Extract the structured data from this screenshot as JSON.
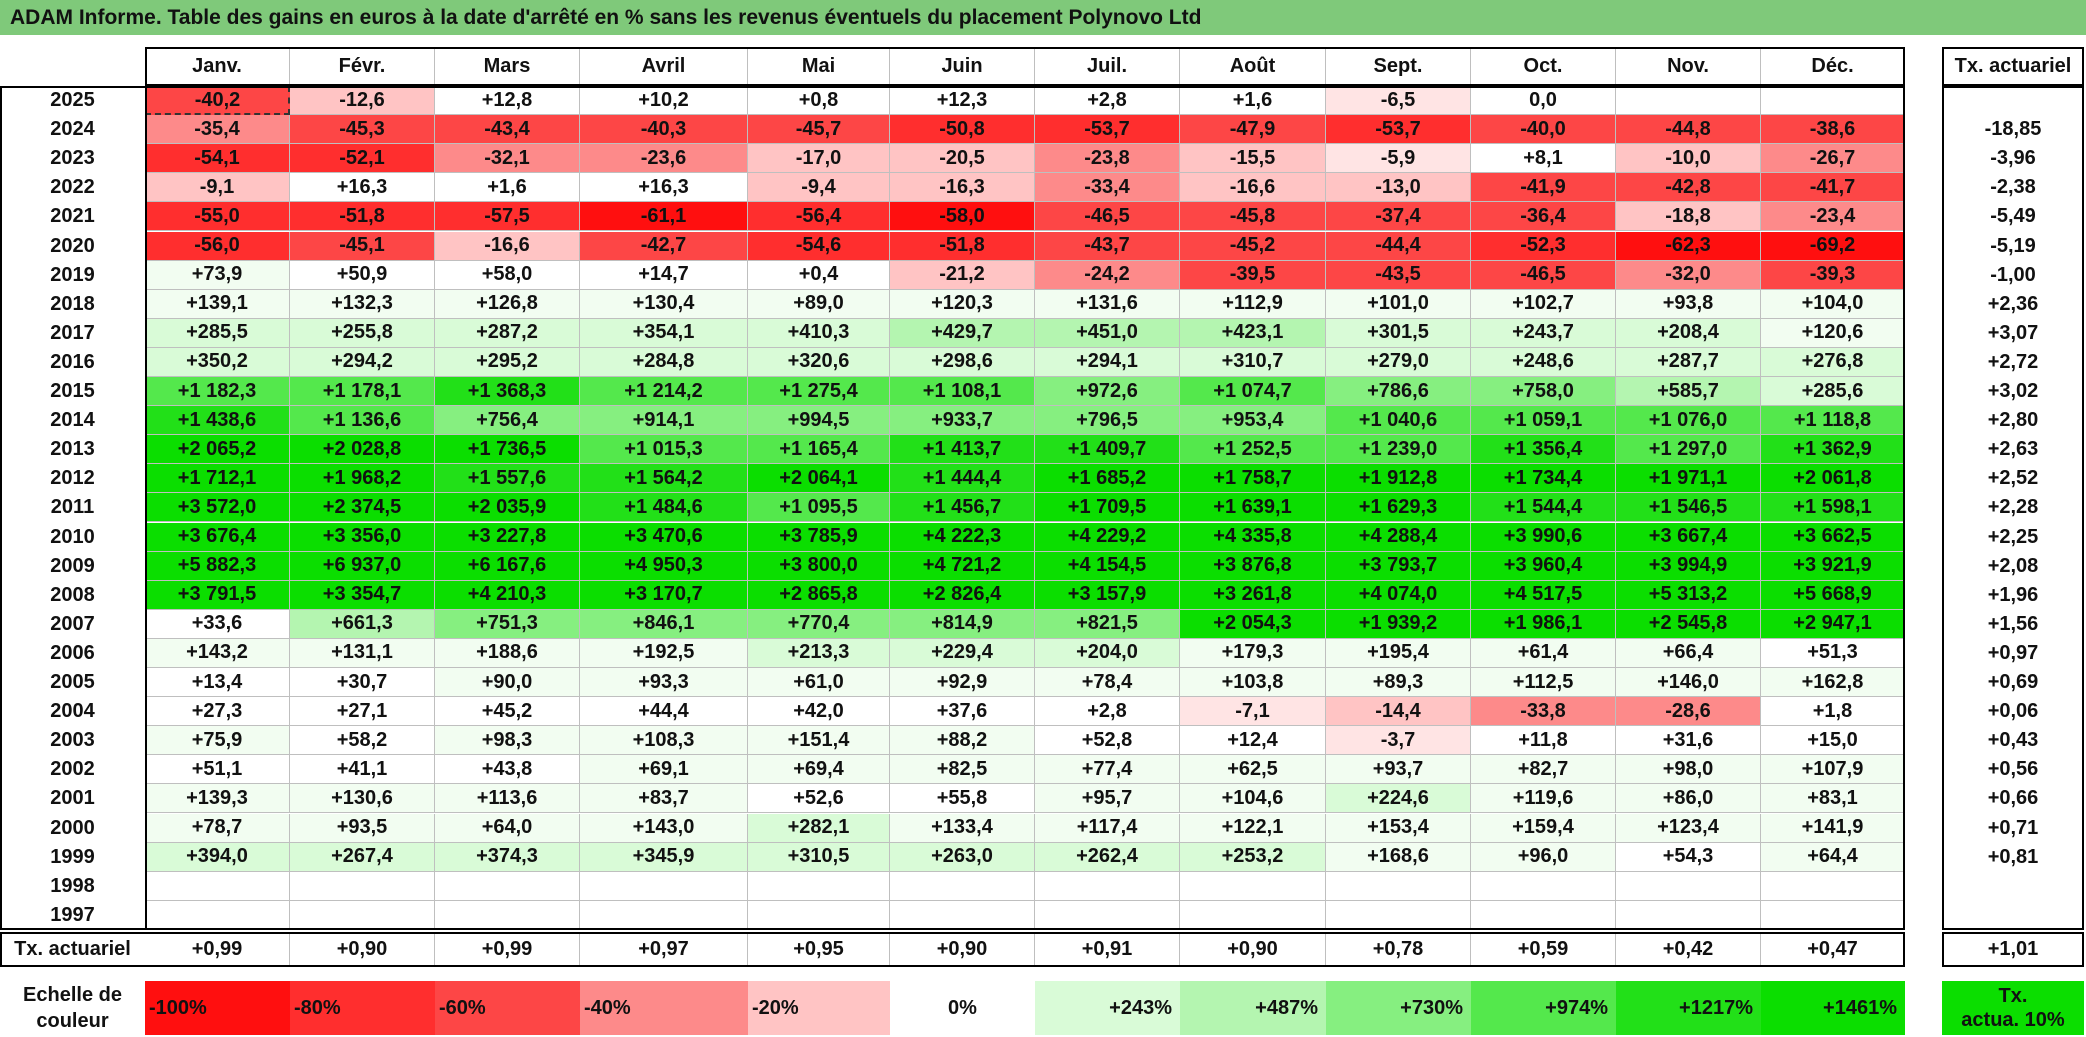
{
  "title": "ADAM Informe. Table des gains en euros à la date d'arrêté en % sans les revenus éventuels du placement Polynovo Ltd",
  "months": [
    "Janv.",
    "Févr.",
    "Mars",
    "Avril",
    "Mai",
    "Juin",
    "Juil.",
    "Août",
    "Sept.",
    "Oct.",
    "Nov.",
    "Déc."
  ],
  "rate_header": "Tx. actuariel",
  "rows": [
    {
      "year": "2025",
      "values": [
        "-40,2",
        "-12,6",
        "+12,8",
        "+10,2",
        "+0,8",
        "+12,3",
        "+2,8",
        "+1,6",
        "-6,5",
        "0,0",
        "",
        ""
      ],
      "rate": ""
    },
    {
      "year": "2024",
      "values": [
        "-35,4",
        "-45,3",
        "-43,4",
        "-40,3",
        "-45,7",
        "-50,8",
        "-53,7",
        "-47,9",
        "-53,7",
        "-40,0",
        "-44,8",
        "-38,6"
      ],
      "rate": "-18,85"
    },
    {
      "year": "2023",
      "values": [
        "-54,1",
        "-52,1",
        "-32,1",
        "-23,6",
        "-17,0",
        "-20,5",
        "-23,8",
        "-15,5",
        "-5,9",
        "+8,1",
        "-10,0",
        "-26,7"
      ],
      "rate": "-3,96"
    },
    {
      "year": "2022",
      "values": [
        "-9,1",
        "+16,3",
        "+1,6",
        "+16,3",
        "-9,4",
        "-16,3",
        "-33,4",
        "-16,6",
        "-13,0",
        "-41,9",
        "-42,8",
        "-41,7"
      ],
      "rate": "-2,38"
    },
    {
      "year": "2021",
      "values": [
        "-55,0",
        "-51,8",
        "-57,5",
        "-61,1",
        "-56,4",
        "-58,0",
        "-46,5",
        "-45,8",
        "-37,4",
        "-36,4",
        "-18,8",
        "-23,4"
      ],
      "rate": "-5,49"
    },
    {
      "year": "2020",
      "values": [
        "-56,0",
        "-45,1",
        "-16,6",
        "-42,7",
        "-54,6",
        "-51,8",
        "-43,7",
        "-45,2",
        "-44,4",
        "-52,3",
        "-62,3",
        "-69,2"
      ],
      "rate": "-5,19"
    },
    {
      "year": "2019",
      "values": [
        "+73,9",
        "+50,9",
        "+58,0",
        "+14,7",
        "+0,4",
        "-21,2",
        "-24,2",
        "-39,5",
        "-43,5",
        "-46,5",
        "-32,0",
        "-39,3"
      ],
      "rate": "-1,00"
    },
    {
      "year": "2018",
      "values": [
        "+139,1",
        "+132,3",
        "+126,8",
        "+130,4",
        "+89,0",
        "+120,3",
        "+131,6",
        "+112,9",
        "+101,0",
        "+102,7",
        "+93,8",
        "+104,0"
      ],
      "rate": "+2,36"
    },
    {
      "year": "2017",
      "values": [
        "+285,5",
        "+255,8",
        "+287,2",
        "+354,1",
        "+410,3",
        "+429,7",
        "+451,0",
        "+423,1",
        "+301,5",
        "+243,7",
        "+208,4",
        "+120,6"
      ],
      "rate": "+3,07"
    },
    {
      "year": "2016",
      "values": [
        "+350,2",
        "+294,2",
        "+295,2",
        "+284,8",
        "+320,6",
        "+298,6",
        "+294,1",
        "+310,7",
        "+279,0",
        "+248,6",
        "+287,7",
        "+276,8"
      ],
      "rate": "+2,72"
    },
    {
      "year": "2015",
      "values": [
        "+1 182,3",
        "+1 178,1",
        "+1 368,3",
        "+1 214,2",
        "+1 275,4",
        "+1 108,1",
        "+972,6",
        "+1 074,7",
        "+786,6",
        "+758,0",
        "+585,7",
        "+285,6"
      ],
      "rate": "+3,02"
    },
    {
      "year": "2014",
      "values": [
        "+1 438,6",
        "+1 136,6",
        "+756,4",
        "+914,1",
        "+994,5",
        "+933,7",
        "+796,5",
        "+953,4",
        "+1 040,6",
        "+1 059,1",
        "+1 076,0",
        "+1 118,8"
      ],
      "rate": "+2,80"
    },
    {
      "year": "2013",
      "values": [
        "+2 065,2",
        "+2 028,8",
        "+1 736,5",
        "+1 015,3",
        "+1 165,4",
        "+1 413,7",
        "+1 409,7",
        "+1 252,5",
        "+1 239,0",
        "+1 356,4",
        "+1 297,0",
        "+1 362,9"
      ],
      "rate": "+2,63"
    },
    {
      "year": "2012",
      "values": [
        "+1 712,1",
        "+1 968,2",
        "+1 557,6",
        "+1 564,2",
        "+2 064,1",
        "+1 444,4",
        "+1 685,2",
        "+1 758,7",
        "+1 912,8",
        "+1 734,4",
        "+1 971,1",
        "+2 061,8"
      ],
      "rate": "+2,52"
    },
    {
      "year": "2011",
      "values": [
        "+3 572,0",
        "+2 374,5",
        "+2 035,9",
        "+1 484,6",
        "+1 095,5",
        "+1 456,7",
        "+1 709,5",
        "+1 639,1",
        "+1 629,3",
        "+1 544,4",
        "+1 546,5",
        "+1 598,1"
      ],
      "rate": "+2,28"
    },
    {
      "year": "2010",
      "values": [
        "+3 676,4",
        "+3 356,0",
        "+3 227,8",
        "+3 470,6",
        "+3 785,9",
        "+4 222,3",
        "+4 229,2",
        "+4 335,8",
        "+4 288,4",
        "+3 990,6",
        "+3 667,4",
        "+3 662,5"
      ],
      "rate": "+2,25"
    },
    {
      "year": "2009",
      "values": [
        "+5 882,3",
        "+6 937,0",
        "+6 167,6",
        "+4 950,3",
        "+3 800,0",
        "+4 721,2",
        "+4 154,5",
        "+3 876,8",
        "+3 793,7",
        "+3 960,4",
        "+3 994,9",
        "+3 921,9"
      ],
      "rate": "+2,08"
    },
    {
      "year": "2008",
      "values": [
        "+3 791,5",
        "+3 354,7",
        "+4 210,3",
        "+3 170,7",
        "+2 865,8",
        "+2 826,4",
        "+3 157,9",
        "+3 261,8",
        "+4 074,0",
        "+4 517,5",
        "+5 313,2",
        "+5 668,9"
      ],
      "rate": "+1,96"
    },
    {
      "year": "2007",
      "values": [
        "+33,6",
        "+661,3",
        "+751,3",
        "+846,1",
        "+770,4",
        "+814,9",
        "+821,5",
        "+2 054,3",
        "+1 939,2",
        "+1 986,1",
        "+2 545,8",
        "+2 947,1"
      ],
      "rate": "+1,56"
    },
    {
      "year": "2006",
      "values": [
        "+143,2",
        "+131,1",
        "+188,6",
        "+192,5",
        "+213,3",
        "+229,4",
        "+204,0",
        "+179,3",
        "+195,4",
        "+61,4",
        "+66,4",
        "+51,3"
      ],
      "rate": "+0,97"
    },
    {
      "year": "2005",
      "values": [
        "+13,4",
        "+30,7",
        "+90,0",
        "+93,3",
        "+61,0",
        "+92,9",
        "+78,4",
        "+103,8",
        "+89,3",
        "+112,5",
        "+146,0",
        "+162,8"
      ],
      "rate": "+0,69"
    },
    {
      "year": "2004",
      "values": [
        "+27,3",
        "+27,1",
        "+45,2",
        "+44,4",
        "+42,0",
        "+37,6",
        "+2,8",
        "-7,1",
        "-14,4",
        "-33,8",
        "-28,6",
        "+1,8"
      ],
      "rate": "+0,06"
    },
    {
      "year": "2003",
      "values": [
        "+75,9",
        "+58,2",
        "+98,3",
        "+108,3",
        "+151,4",
        "+88,2",
        "+52,8",
        "+12,4",
        "-3,7",
        "+11,8",
        "+31,6",
        "+15,0"
      ],
      "rate": "+0,43"
    },
    {
      "year": "2002",
      "values": [
        "+51,1",
        "+41,1",
        "+43,8",
        "+69,1",
        "+69,4",
        "+82,5",
        "+77,4",
        "+62,5",
        "+93,7",
        "+82,7",
        "+98,0",
        "+107,9"
      ],
      "rate": "+0,56"
    },
    {
      "year": "2001",
      "values": [
        "+139,3",
        "+130,6",
        "+113,6",
        "+83,7",
        "+52,6",
        "+55,8",
        "+95,7",
        "+104,6",
        "+224,6",
        "+119,6",
        "+86,0",
        "+83,1"
      ],
      "rate": "+0,66"
    },
    {
      "year": "2000",
      "values": [
        "+78,7",
        "+93,5",
        "+64,0",
        "+143,0",
        "+282,1",
        "+133,4",
        "+117,4",
        "+122,1",
        "+153,4",
        "+159,4",
        "+123,4",
        "+141,9"
      ],
      "rate": "+0,71"
    },
    {
      "year": "1999",
      "values": [
        "+394,0",
        "+267,4",
        "+374,3",
        "+345,9",
        "+310,5",
        "+263,0",
        "+262,4",
        "+253,2",
        "+168,6",
        "+96,0",
        "+54,3",
        "+64,4"
      ],
      "rate": "+0,81"
    },
    {
      "year": "1998",
      "values": [
        "",
        "",
        "",
        "",
        "",
        "",
        "",
        "",
        "",
        "",
        "",
        ""
      ],
      "rate": ""
    },
    {
      "year": "1997",
      "values": [
        "",
        "",
        "",
        "",
        "",
        "",
        "",
        "",
        "",
        "",
        "",
        ""
      ],
      "rate": ""
    }
  ],
  "footer": {
    "label": "Tx. actuariel",
    "values": [
      "+0,99",
      "+0,90",
      "+0,99",
      "+0,97",
      "+0,95",
      "+0,90",
      "+0,91",
      "+0,90",
      "+0,78",
      "+0,59",
      "+0,42",
      "+0,47"
    ],
    "rate": "+1,01"
  },
  "scale": {
    "label_line1": "Echelle de",
    "label_line2": "couleur",
    "steps": [
      {
        "text": "-100%",
        "color": "#ff0f0f"
      },
      {
        "text": "-80%",
        "color": "#ff2e2e"
      },
      {
        "text": "-60%",
        "color": "#fd4646"
      },
      {
        "text": "-40%",
        "color": "#fd8a8a"
      },
      {
        "text": "-20%",
        "color": "#ffc4c4"
      },
      {
        "text": "0%",
        "color": "#ffffff"
      },
      {
        "text": "+243%",
        "color": "#d9fbd7"
      },
      {
        "text": "+487%",
        "color": "#b4f5b0"
      },
      {
        "text": "+730%",
        "color": "#86ef80"
      },
      {
        "text": "+974%",
        "color": "#54e84c"
      },
      {
        "text": "+1217%",
        "color": "#22e018"
      },
      {
        "text": "+1461%",
        "color": "#0bde00"
      }
    ],
    "legend_line1": "Tx.",
    "legend_line2": "actua. 10%",
    "legend_color": "#0bde00"
  },
  "colors": {
    "title_bg": "#7fc97a",
    "neg_scale": [
      "#ffe4e4",
      "#ffc4c4",
      "#fd8a8a",
      "#fd4646",
      "#ff2e2e",
      "#ff0f0f"
    ],
    "pos_scale": [
      "#f2fdf1",
      "#d9fbd7",
      "#b4f5b0",
      "#86ef80",
      "#54e84c",
      "#22e018",
      "#0bde00"
    ]
  }
}
